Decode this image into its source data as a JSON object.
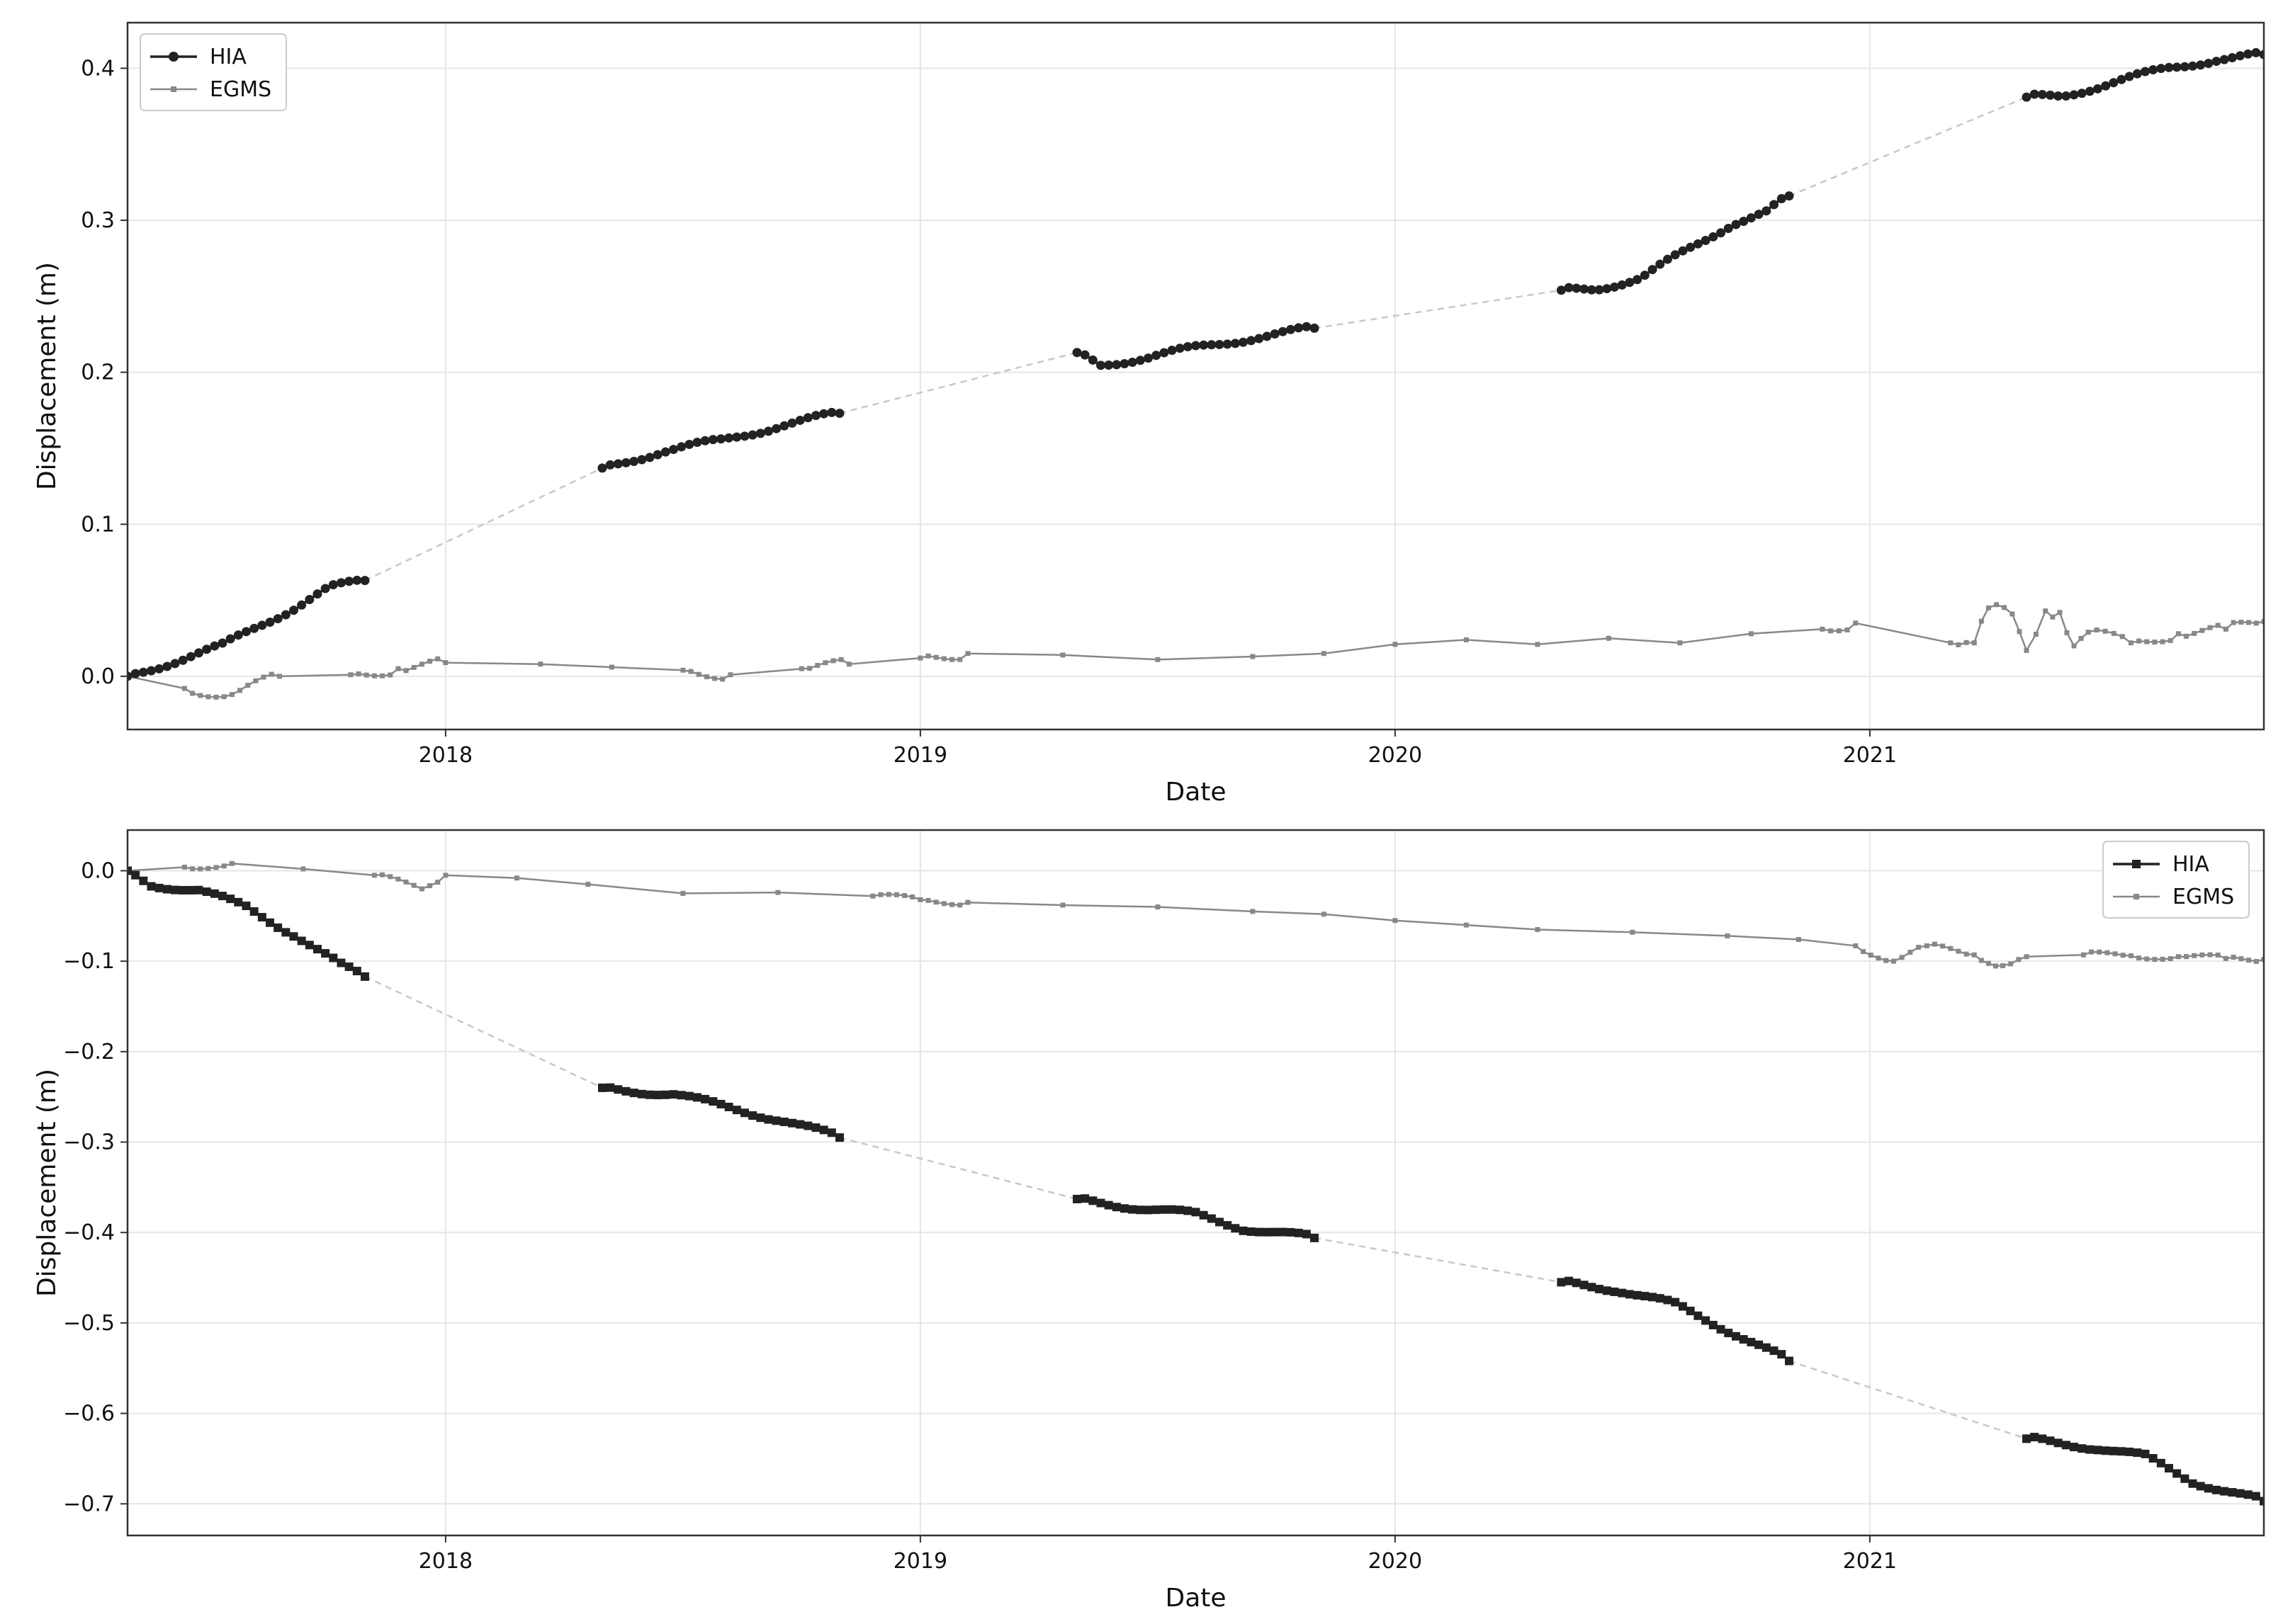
{
  "figure": {
    "background": "#ffffff"
  },
  "colors": {
    "hia": "#222222",
    "egms": "#888888",
    "gap_line": "#c8c8c8",
    "grid": "#e6e6e6",
    "frame": "#333333"
  },
  "chart_data": [
    {
      "type": "line",
      "xlabel": "Date",
      "ylabel": "Displacement (m)",
      "xlim": [
        2017.33,
        2021.83
      ],
      "ylim": [
        -0.035,
        0.43
      ],
      "xticks": [
        2018,
        2019,
        2020,
        2021
      ],
      "xtick_labels": [
        "2018",
        "2019",
        "2020",
        "2021"
      ],
      "yticks": [
        0.0,
        0.1,
        0.2,
        0.3,
        0.4
      ],
      "ytick_labels": [
        "0.0",
        "0.1",
        "0.2",
        "0.3",
        "0.4"
      ],
      "grid": true,
      "legend_position": "top-left",
      "legend": [
        "HIA",
        "EGMS"
      ],
      "series": [
        {
          "name": "HIA",
          "marker": "circle",
          "segments": [
            {
              "x": [
                2017.33,
                2017.83
              ],
              "y": [
                0.0,
                0.063
              ]
            },
            {
              "x": [
                2018.33,
                2018.83
              ],
              "y": [
                0.137,
                0.173
              ]
            },
            {
              "x": [
                2019.33,
                2019.83
              ],
              "y": [
                0.213,
                0.229
              ]
            },
            {
              "x": [
                2020.35,
                2020.83
              ],
              "y": [
                0.254,
                0.316
              ]
            },
            {
              "x": [
                2021.33,
                2021.83
              ],
              "y": [
                0.381,
                0.409
              ]
            }
          ],
          "profile": [
            [
              [
                0,
                0.0
              ],
              [
                0.2,
                0.01
              ],
              [
                0.4,
                0.02
              ],
              [
                0.55,
                0.033
              ],
              [
                0.7,
                0.045
              ],
              [
                0.85,
                0.058
              ],
              [
                1,
                0.063
              ]
            ],
            [
              [
                0,
                0.137
              ],
              [
                0.25,
                0.148
              ],
              [
                0.5,
                0.155
              ],
              [
                0.75,
                0.165
              ],
              [
                1,
                0.173
              ]
            ],
            [
              [
                0,
                0.213
              ],
              [
                0.1,
                0.205
              ],
              [
                0.3,
                0.21
              ],
              [
                0.5,
                0.216
              ],
              [
                0.75,
                0.223
              ],
              [
                1,
                0.229
              ]
            ],
            [
              [
                0,
                0.254
              ],
              [
                0.15,
                0.255
              ],
              [
                0.35,
                0.262
              ],
              [
                0.55,
                0.28
              ],
              [
                0.75,
                0.298
              ],
              [
                0.9,
                0.305
              ],
              [
                1,
                0.316
              ]
            ],
            [
              [
                0,
                0.381
              ],
              [
                0.15,
                0.382
              ],
              [
                0.35,
                0.39
              ],
              [
                0.6,
                0.4
              ],
              [
                0.8,
                0.406
              ],
              [
                1,
                0.409
              ]
            ]
          ]
        },
        {
          "name": "EGMS",
          "marker": "square",
          "points": [
            [
              2017.33,
              0.0
            ],
            [
              2017.45,
              -0.008
            ],
            [
              2017.55,
              -0.012
            ],
            [
              2017.65,
              0.0
            ],
            [
              2017.8,
              0.001
            ],
            [
              2017.9,
              0.005
            ],
            [
              2018.0,
              0.009
            ],
            [
              2018.2,
              0.008
            ],
            [
              2018.35,
              0.006
            ],
            [
              2018.5,
              0.004
            ],
            [
              2018.6,
              0.001
            ],
            [
              2018.75,
              0.005
            ],
            [
              2018.85,
              0.008
            ],
            [
              2019.0,
              0.012
            ],
            [
              2019.1,
              0.015
            ],
            [
              2019.3,
              0.014
            ],
            [
              2019.5,
              0.011
            ],
            [
              2019.7,
              0.013
            ],
            [
              2019.85,
              0.015
            ],
            [
              2020.0,
              0.021
            ],
            [
              2020.15,
              0.024
            ],
            [
              2020.3,
              0.021
            ],
            [
              2020.45,
              0.025
            ],
            [
              2020.6,
              0.022
            ],
            [
              2020.75,
              0.028
            ],
            [
              2020.9,
              0.031
            ],
            [
              2020.97,
              0.035
            ],
            [
              2021.17,
              0.022
            ],
            [
              2021.22,
              0.022
            ],
            [
              2021.25,
              0.045
            ],
            [
              2021.3,
              0.041
            ],
            [
              2021.33,
              0.017
            ],
            [
              2021.37,
              0.043
            ],
            [
              2021.4,
              0.042
            ],
            [
              2021.43,
              0.02
            ],
            [
              2021.46,
              0.029
            ],
            [
              2021.55,
              0.022
            ],
            [
              2021.65,
              0.028
            ],
            [
              2021.75,
              0.031
            ],
            [
              2021.83,
              0.036
            ]
          ]
        }
      ]
    },
    {
      "type": "line",
      "xlabel": "Date",
      "ylabel": "Displacement (m)",
      "xlim": [
        2017.33,
        2021.83
      ],
      "ylim": [
        -0.735,
        0.045
      ],
      "xticks": [
        2018,
        2019,
        2020,
        2021
      ],
      "xtick_labels": [
        "2018",
        "2019",
        "2020",
        "2021"
      ],
      "yticks": [
        0.0,
        -0.1,
        -0.2,
        -0.3,
        -0.4,
        -0.5,
        -0.6,
        -0.7
      ],
      "ytick_labels": [
        "0.0",
        "−0.1",
        "−0.2",
        "−0.3",
        "−0.4",
        "−0.5",
        "−0.6",
        "−0.7"
      ],
      "grid": true,
      "legend_position": "top-right",
      "legend": [
        "HIA",
        "EGMS"
      ],
      "series": [
        {
          "name": "HIA",
          "marker": "square",
          "segments": [
            {
              "x": [
                2017.33,
                2017.83
              ],
              "y": [
                0.0,
                -0.117
              ]
            },
            {
              "x": [
                2018.33,
                2018.83
              ],
              "y": [
                -0.24,
                -0.295
              ]
            },
            {
              "x": [
                2019.33,
                2019.83
              ],
              "y": [
                -0.363,
                -0.406
              ]
            },
            {
              "x": [
                2020.35,
                2020.83
              ],
              "y": [
                -0.455,
                -0.542
              ]
            },
            {
              "x": [
                2021.33,
                2021.83
              ],
              "y": [
                -0.628,
                -0.697
              ]
            }
          ],
          "profile": [
            [
              [
                0,
                0.0
              ],
              [
                0.1,
                -0.015
              ],
              [
                0.3,
                -0.022
              ],
              [
                0.5,
                -0.04
              ],
              [
                0.7,
                -0.07
              ],
              [
                0.9,
                -0.105
              ],
              [
                1,
                -0.117
              ]
            ],
            [
              [
                0,
                -0.24
              ],
              [
                0.3,
                -0.247
              ],
              [
                0.5,
                -0.26
              ],
              [
                0.75,
                -0.275
              ],
              [
                1,
                -0.295
              ]
            ],
            [
              [
                0,
                -0.363
              ],
              [
                0.3,
                -0.374
              ],
              [
                0.5,
                -0.38
              ],
              [
                0.7,
                -0.395
              ],
              [
                1,
                -0.406
              ]
            ],
            [
              [
                0,
                -0.455
              ],
              [
                0.25,
                -0.463
              ],
              [
                0.5,
                -0.48
              ],
              [
                0.75,
                -0.51
              ],
              [
                1,
                -0.542
              ]
            ],
            [
              [
                0,
                -0.628
              ],
              [
                0.3,
                -0.638
              ],
              [
                0.5,
                -0.648
              ],
              [
                0.7,
                -0.675
              ],
              [
                1,
                -0.697
              ]
            ]
          ]
        },
        {
          "name": "EGMS",
          "marker": "square",
          "points": [
            [
              2017.33,
              0.0
            ],
            [
              2017.45,
              0.004
            ],
            [
              2017.55,
              0.008
            ],
            [
              2017.7,
              0.002
            ],
            [
              2017.85,
              -0.005
            ],
            [
              2017.95,
              -0.02
            ],
            [
              2018.0,
              -0.005
            ],
            [
              2018.15,
              -0.008
            ],
            [
              2018.3,
              -0.015
            ],
            [
              2018.5,
              -0.025
            ],
            [
              2018.7,
              -0.024
            ],
            [
              2018.9,
              -0.028
            ],
            [
              2019.0,
              -0.032
            ],
            [
              2019.1,
              -0.035
            ],
            [
              2019.3,
              -0.038
            ],
            [
              2019.5,
              -0.04
            ],
            [
              2019.7,
              -0.045
            ],
            [
              2019.85,
              -0.048
            ],
            [
              2020.0,
              -0.055
            ],
            [
              2020.15,
              -0.06
            ],
            [
              2020.3,
              -0.065
            ],
            [
              2020.5,
              -0.068
            ],
            [
              2020.7,
              -0.072
            ],
            [
              2020.85,
              -0.076
            ],
            [
              2020.97,
              -0.083
            ],
            [
              2021.05,
              -0.1
            ],
            [
              2021.12,
              -0.083
            ],
            [
              2021.22,
              -0.093
            ],
            [
              2021.28,
              -0.105
            ],
            [
              2021.33,
              -0.095
            ],
            [
              2021.45,
              -0.093
            ],
            [
              2021.55,
              -0.094
            ],
            [
              2021.65,
              -0.095
            ],
            [
              2021.75,
              -0.097
            ],
            [
              2021.83,
              -0.098
            ]
          ]
        }
      ]
    }
  ]
}
